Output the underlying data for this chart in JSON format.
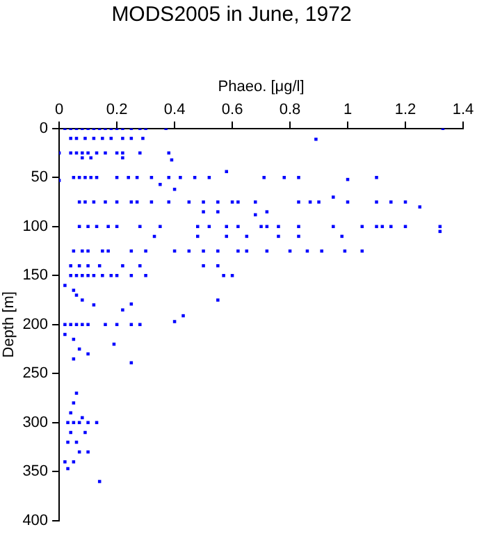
{
  "chart_data": {
    "type": "scatter",
    "title": "MODS2005 in June, 1972",
    "xlabel": "Phaeo. [μg/l]",
    "ylabel": "Depth [m]",
    "xlim": [
      0,
      1.4
    ],
    "xticks": [
      0,
      0.2,
      0.4,
      0.6,
      0.8,
      1,
      1.2,
      1.4
    ],
    "ylim": [
      400,
      0
    ],
    "yticks": [
      0,
      50,
      100,
      150,
      200,
      250,
      300,
      350,
      400
    ],
    "marker": "square",
    "grid": false,
    "legend": false,
    "series": [
      {
        "color": "#0000ff",
        "x": [
          0.02,
          0.04,
          0.06,
          0.08,
          0.1,
          0.12,
          0.14,
          0.16,
          0.18,
          0.2,
          0.22,
          0.25,
          0.28,
          0.3,
          0.37,
          1.33,
          0.04,
          0.06,
          0.09,
          0.12,
          0.15,
          0.18,
          0.22,
          0.25,
          0.29,
          0.89,
          0.0,
          0.04,
          0.06,
          0.08,
          0.1,
          0.13,
          0.16,
          0.2,
          0.22,
          0.28,
          0.38,
          0.08,
          0.11,
          0.22,
          0.39,
          0.0,
          0.05,
          0.07,
          0.09,
          0.11,
          0.13,
          0.2,
          0.24,
          0.27,
          0.32,
          0.38,
          0.42,
          0.47,
          0.52,
          0.58,
          0.71,
          0.78,
          0.83,
          1.0,
          1.1,
          0.35,
          0.4,
          0.07,
          0.09,
          0.12,
          0.16,
          0.2,
          0.25,
          0.27,
          0.32,
          0.38,
          0.45,
          0.5,
          0.55,
          0.6,
          0.62,
          0.68,
          0.83,
          0.87,
          0.9,
          0.95,
          1.0,
          1.1,
          1.15,
          1.2,
          1.25,
          0.5,
          0.55,
          0.68,
          0.72,
          0.07,
          0.1,
          0.13,
          0.17,
          0.2,
          0.28,
          0.35,
          0.48,
          0.52,
          0.58,
          0.62,
          0.7,
          0.72,
          0.76,
          0.83,
          0.95,
          1.05,
          1.1,
          1.12,
          1.15,
          1.2,
          1.32,
          0.33,
          0.48,
          0.58,
          0.65,
          0.76,
          0.83,
          0.98,
          1.32,
          0.05,
          0.08,
          0.1,
          0.15,
          0.17,
          0.25,
          0.3,
          0.4,
          0.45,
          0.5,
          0.55,
          0.62,
          0.65,
          0.72,
          0.8,
          0.86,
          0.91,
          0.99,
          1.05,
          0.04,
          0.07,
          0.1,
          0.14,
          0.22,
          0.28,
          0.5,
          0.55,
          0.04,
          0.06,
          0.08,
          0.1,
          0.12,
          0.15,
          0.18,
          0.2,
          0.25,
          0.3,
          0.57,
          0.6,
          0.02,
          0.05,
          0.06,
          0.08,
          0.12,
          0.22,
          0.55,
          0.25,
          0.43,
          0.4,
          0.02,
          0.04,
          0.06,
          0.08,
          0.1,
          0.16,
          0.2,
          0.25,
          0.28,
          0.02,
          0.05,
          0.07,
          0.1,
          0.19,
          0.25,
          0.05,
          0.06,
          0.05,
          0.04,
          0.08,
          0.03,
          0.05,
          0.07,
          0.1,
          0.13,
          0.04,
          0.09,
          0.03,
          0.06,
          0.07,
          0.1,
          0.02,
          0.05,
          0.03,
          0.14
        ],
        "values": [
          0,
          0,
          0,
          0,
          0,
          0,
          0,
          0,
          0,
          0,
          0,
          0,
          0,
          0,
          0,
          0,
          10,
          10,
          10,
          10,
          10,
          10,
          10,
          10,
          10,
          11,
          25,
          25,
          25,
          25,
          25,
          25,
          25,
          25,
          25,
          25,
          25,
          30,
          30,
          30,
          32,
          53,
          50,
          50,
          50,
          50,
          50,
          50,
          50,
          50,
          50,
          50,
          50,
          50,
          50,
          44,
          50,
          50,
          50,
          52,
          50,
          57,
          62,
          75,
          75,
          75,
          75,
          75,
          75,
          75,
          75,
          75,
          75,
          75,
          75,
          75,
          75,
          75,
          75,
          75,
          75,
          70,
          75,
          75,
          75,
          75,
          80,
          85,
          85,
          88,
          85,
          100,
          100,
          100,
          100,
          100,
          100,
          100,
          100,
          100,
          100,
          100,
          100,
          100,
          100,
          100,
          100,
          100,
          100,
          100,
          100,
          100,
          100,
          110,
          110,
          110,
          110,
          110,
          110,
          110,
          105,
          125,
          125,
          125,
          125,
          125,
          125,
          125,
          125,
          125,
          125,
          125,
          125,
          125,
          125,
          125,
          125,
          125,
          125,
          125,
          140,
          140,
          140,
          140,
          140,
          140,
          140,
          140,
          150,
          150,
          150,
          150,
          150,
          150,
          150,
          150,
          150,
          150,
          150,
          150,
          160,
          165,
          170,
          175,
          180,
          185,
          175,
          179,
          191,
          197,
          200,
          200,
          200,
          200,
          200,
          200,
          200,
          200,
          200,
          210,
          215,
          225,
          230,
          220,
          239,
          235,
          270,
          280,
          290,
          295,
          300,
          300,
          300,
          300,
          300,
          310,
          310,
          320,
          320,
          330,
          330,
          340,
          340,
          347,
          360
        ]
      }
    ]
  }
}
